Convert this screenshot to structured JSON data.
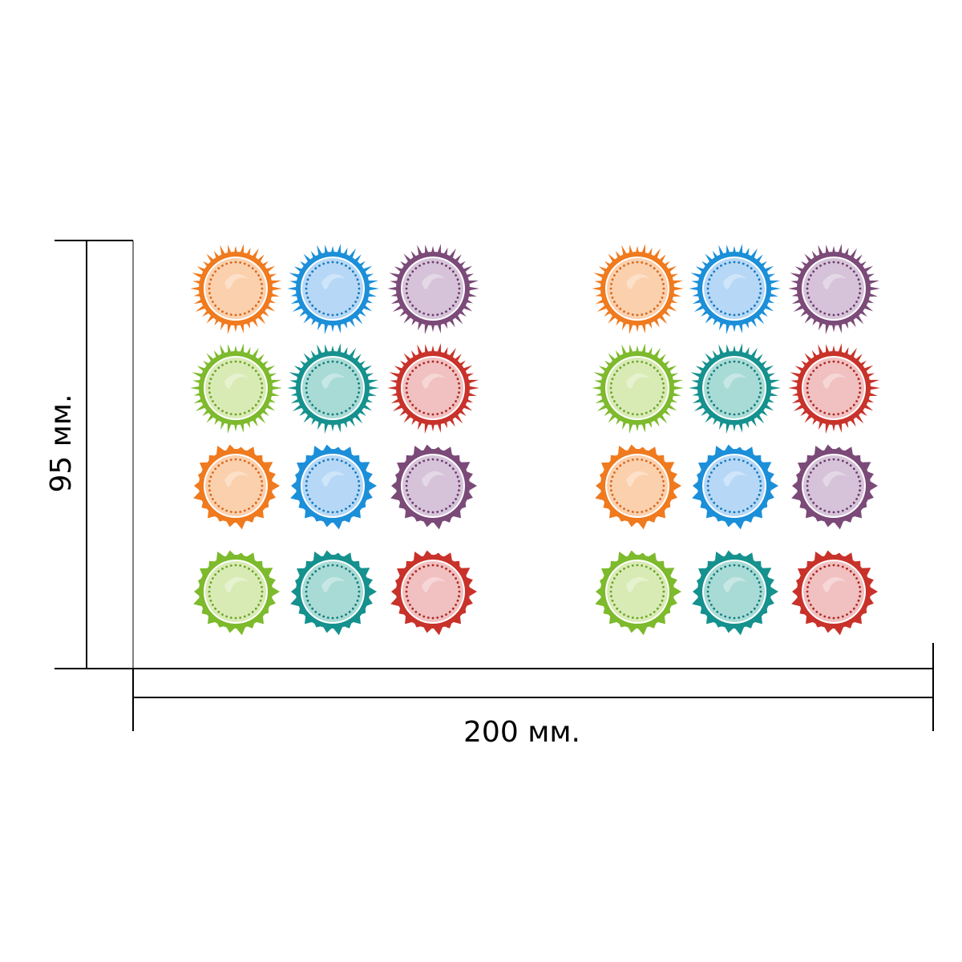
{
  "dimensions": {
    "width_label": "200 мм.",
    "height_label": "95 мм."
  },
  "sticker_sheet": {
    "halves": 2,
    "rows": [
      {
        "style": "petal",
        "colors": [
          "orange",
          "blue",
          "purple"
        ]
      },
      {
        "style": "petal",
        "colors": [
          "green",
          "teal",
          "red"
        ]
      },
      {
        "style": "spiky",
        "colors": [
          "orange",
          "blue",
          "purple"
        ]
      },
      {
        "style": "spiky",
        "colors": [
          "green",
          "teal",
          "red"
        ]
      }
    ]
  },
  "palette": {
    "orange": {
      "outer": "#f07a1e",
      "inner": "#fbd0ad",
      "dots": "#d8661a"
    },
    "blue": {
      "outer": "#1c8fd9",
      "inner": "#b6d8f6",
      "dots": "#1477bd"
    },
    "purple": {
      "outer": "#7b4a78",
      "inner": "#d6c3da",
      "dots": "#6a3b66"
    },
    "green": {
      "outer": "#7dba2c",
      "inner": "#d9ebb5",
      "dots": "#6aa327"
    },
    "teal": {
      "outer": "#15918e",
      "inner": "#a9dbd6",
      "dots": "#117c7a"
    },
    "red": {
      "outer": "#c8322a",
      "inner": "#f1c0c0",
      "dots": "#ac2520"
    }
  }
}
